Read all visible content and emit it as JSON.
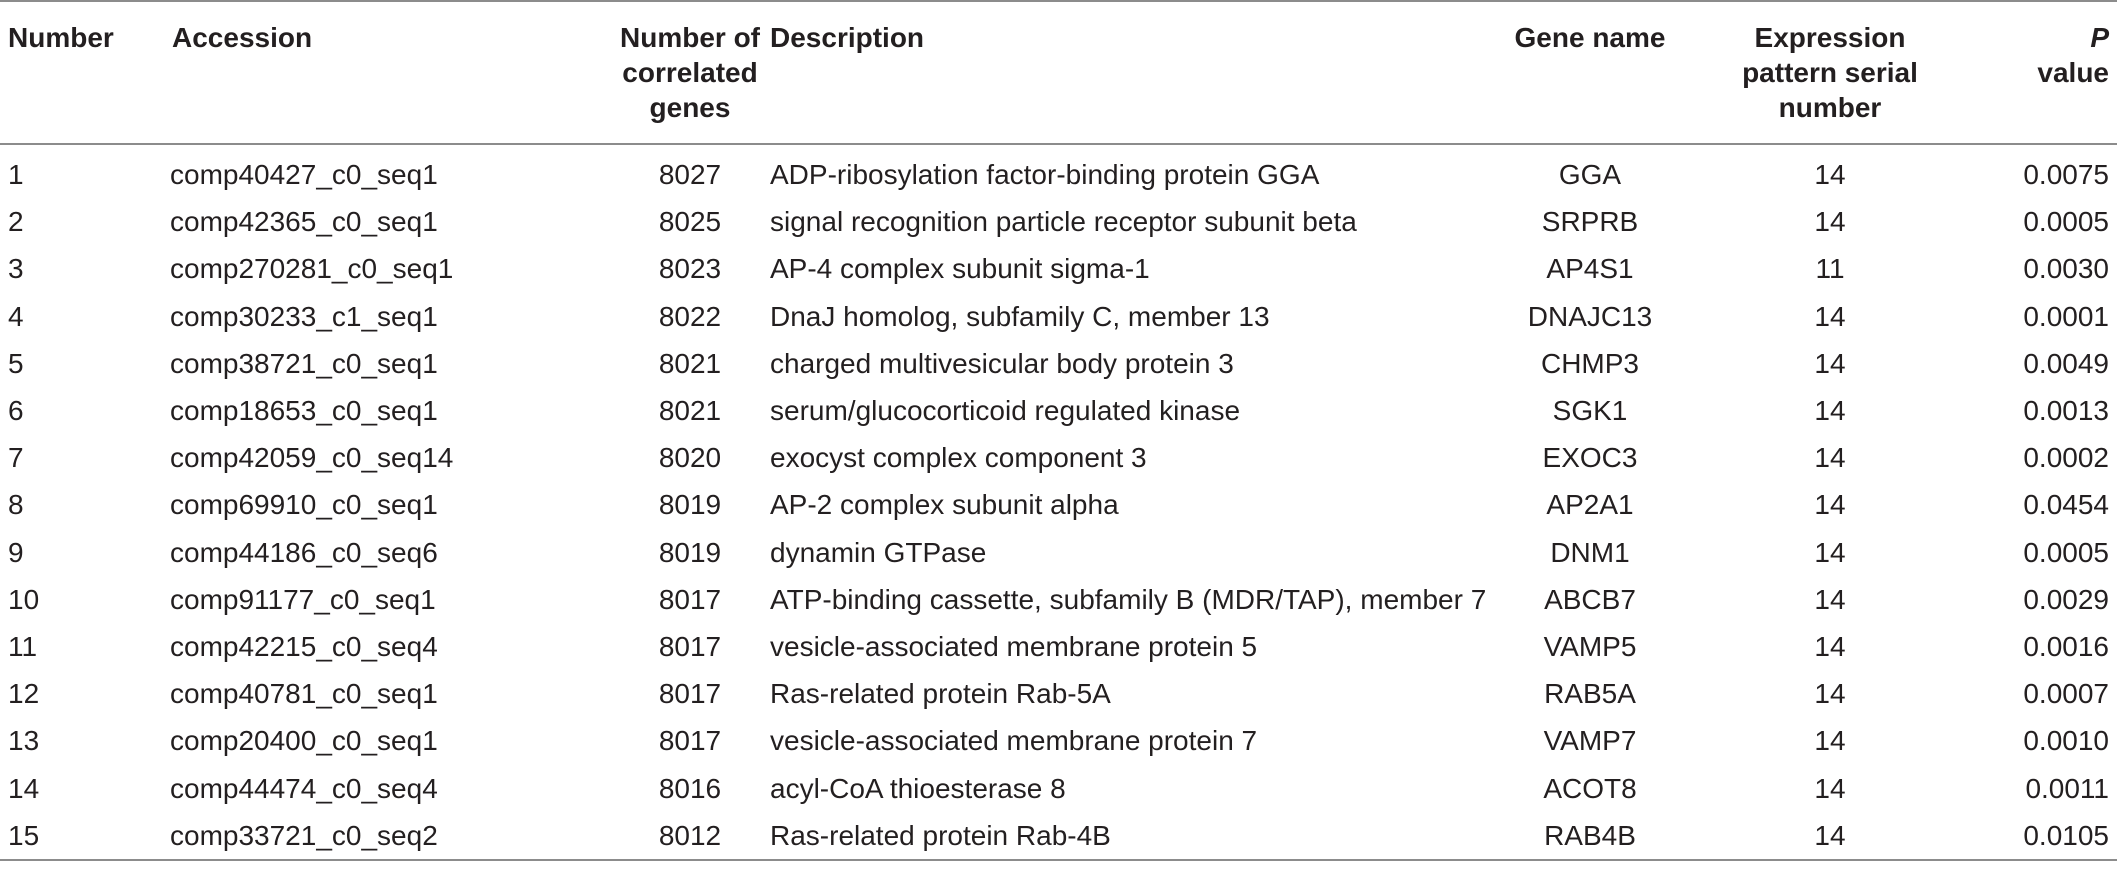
{
  "table": {
    "headers": {
      "number": "Number",
      "accession": "Accession",
      "correlated": "Number of correlated genes",
      "description": "Description",
      "gene_name": "Gene name",
      "expression": "Expression pattern serial number",
      "p_italic": "P",
      "p_rest": "value"
    },
    "rows": [
      {
        "number": "1",
        "accession": "comp40427_c0_seq1",
        "correlated": "8027",
        "description": "ADP-ribosylation factor-binding protein GGA",
        "gene": "GGA",
        "pattern": "14",
        "p": "0.0075"
      },
      {
        "number": "2",
        "accession": "comp42365_c0_seq1",
        "correlated": "8025",
        "description": "signal recognition particle receptor subunit beta",
        "gene": "SRPRB",
        "pattern": "14",
        "p": "0.0005"
      },
      {
        "number": "3",
        "accession": "comp270281_c0_seq1",
        "correlated": "8023",
        "description": "AP-4 complex subunit sigma-1",
        "gene": "AP4S1",
        "pattern": "11",
        "p": "0.0030"
      },
      {
        "number": "4",
        "accession": "comp30233_c1_seq1",
        "correlated": "8022",
        "description": "DnaJ homolog, subfamily C, member 13",
        "gene": "DNAJC13",
        "pattern": "14",
        "p": "0.0001"
      },
      {
        "number": "5",
        "accession": "comp38721_c0_seq1",
        "correlated": "8021",
        "description": "charged multivesicular body protein 3",
        "gene": "CHMP3",
        "pattern": "14",
        "p": "0.0049"
      },
      {
        "number": "6",
        "accession": "comp18653_c0_seq1",
        "correlated": "8021",
        "description": "serum/glucocorticoid regulated kinase",
        "gene": "SGK1",
        "pattern": "14",
        "p": "0.0013"
      },
      {
        "number": "7",
        "accession": "comp42059_c0_seq14",
        "correlated": "8020",
        "description": "exocyst complex component 3",
        "gene": "EXOC3",
        "pattern": "14",
        "p": "0.0002"
      },
      {
        "number": "8",
        "accession": "comp69910_c0_seq1",
        "correlated": "8019",
        "description": "AP-2 complex subunit alpha",
        "gene": "AP2A1",
        "pattern": "14",
        "p": "0.0454"
      },
      {
        "number": "9",
        "accession": "comp44186_c0_seq6",
        "correlated": "8019",
        "description": "dynamin GTPase",
        "gene": "DNM1",
        "pattern": "14",
        "p": "0.0005"
      },
      {
        "number": "10",
        "accession": "comp91177_c0_seq1",
        "correlated": "8017",
        "description": "ATP-binding cassette, subfamily B (MDR/TAP), member 7",
        "gene": "ABCB7",
        "pattern": "14",
        "p": "0.0029"
      },
      {
        "number": "11",
        "accession": "comp42215_c0_seq4",
        "correlated": "8017",
        "description": "vesicle-associated membrane protein 5",
        "gene": "VAMP5",
        "pattern": "14",
        "p": "0.0016"
      },
      {
        "number": "12",
        "accession": "comp40781_c0_seq1",
        "correlated": "8017",
        "description": "Ras-related protein Rab-5A",
        "gene": "RAB5A",
        "pattern": "14",
        "p": "0.0007"
      },
      {
        "number": "13",
        "accession": "comp20400_c0_seq1",
        "correlated": "8017",
        "description": "vesicle-associated membrane protein 7",
        "gene": "VAMP7",
        "pattern": "14",
        "p": "0.0010"
      },
      {
        "number": "14",
        "accession": "comp44474_c0_seq4",
        "correlated": "8016",
        "description": "acyl-CoA thioesterase 8",
        "gene": "ACOT8",
        "pattern": "14",
        "p": "0.0011"
      },
      {
        "number": "15",
        "accession": "comp33721_c0_seq2",
        "correlated": "8012",
        "description": "Ras-related protein Rab-4B",
        "gene": "RAB4B",
        "pattern": "14",
        "p": "0.0105"
      }
    ]
  }
}
